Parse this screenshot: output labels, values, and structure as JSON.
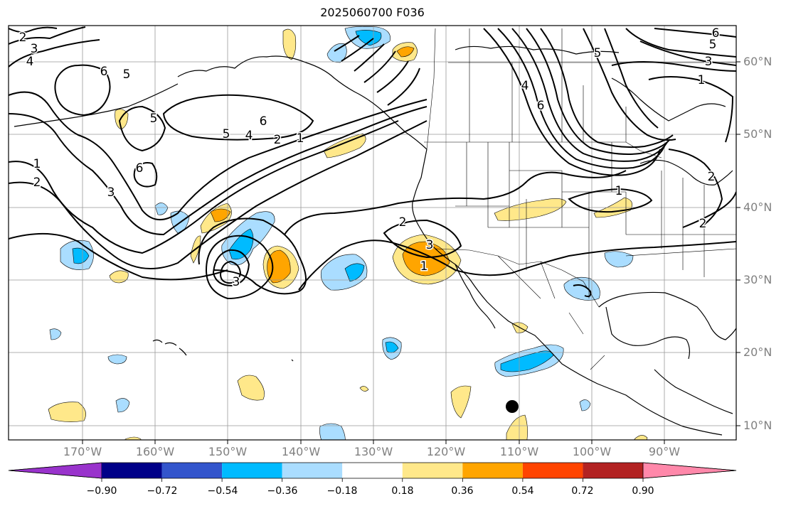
{
  "title": "2025060700 F036",
  "lat_labels": [
    "60°N",
    "50°N",
    "40°N",
    "30°N",
    "20°N",
    "10°N"
  ],
  "lon_labels": [
    "170°W",
    "160°W",
    "150°W",
    "140°W",
    "130°W",
    "120°W",
    "110°W",
    "100°W",
    "90°W"
  ],
  "colorbar": {
    "colors": [
      "#9933cc",
      "#000088",
      "#3355cc",
      "#00bbff",
      "#aaddff",
      "#ffffff",
      "#ffe88a",
      "#ffa500",
      "#ff4400",
      "#b22222",
      "#ff88aa"
    ],
    "ticks": [
      "−0.90",
      "−0.72",
      "−0.54",
      "−0.36",
      "−0.18",
      "0.18",
      "0.36",
      "0.54",
      "0.72",
      "0.90"
    ]
  },
  "contour_labels": [
    "3",
    "4",
    "2",
    "6",
    "5",
    "5",
    "5",
    "6",
    "4",
    "2",
    "1",
    "6",
    "1",
    "2",
    "3",
    "6",
    "4",
    "6",
    "5",
    "5",
    "3",
    "1",
    "1",
    "2",
    "2",
    "2",
    "3",
    "1",
    "3"
  ]
}
